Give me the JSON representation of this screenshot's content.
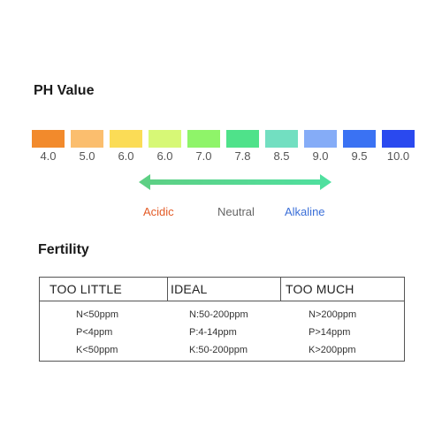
{
  "ph": {
    "title": "PH Value",
    "swatches": [
      {
        "value": "4.0",
        "color": "#f28a2c"
      },
      {
        "value": "5.0",
        "color": "#fbbe6e"
      },
      {
        "value": "6.0",
        "color": "#fbdc56"
      },
      {
        "value": "6.0",
        "color": "#d7f876"
      },
      {
        "value": "7.0",
        "color": "#8ff469"
      },
      {
        "value": "7.8",
        "color": "#4fe28a"
      },
      {
        "value": "8.5",
        "color": "#72dfc1"
      },
      {
        "value": "9.0",
        "color": "#85acf7"
      },
      {
        "value": "9.5",
        "color": "#3a72f3"
      },
      {
        "value": "10.0",
        "color": "#2a49ef"
      }
    ],
    "scale": {
      "acidic": "Acidic",
      "neutral": "Neutral",
      "alkaline": "Alkaline",
      "acidic_color": "#e35b27",
      "neutral_color": "#666666",
      "alkaline_color": "#3b6fd8"
    },
    "arrow_colors": {
      "start": "#5ecf83",
      "end": "#4fe0a0"
    }
  },
  "fertility": {
    "title": "Fertility",
    "columns": [
      {
        "header": "TOO LITTLE",
        "rows": [
          "N<50ppm",
          "P<4ppm",
          "K<50ppm"
        ]
      },
      {
        "header": "IDEAL",
        "rows": [
          "N:50-200ppm",
          "P:4-14ppm",
          "K:50-200ppm"
        ]
      },
      {
        "header": "TOO MUCH",
        "rows": [
          "N>200ppm",
          "P>14ppm",
          "K>200ppm"
        ]
      }
    ]
  }
}
